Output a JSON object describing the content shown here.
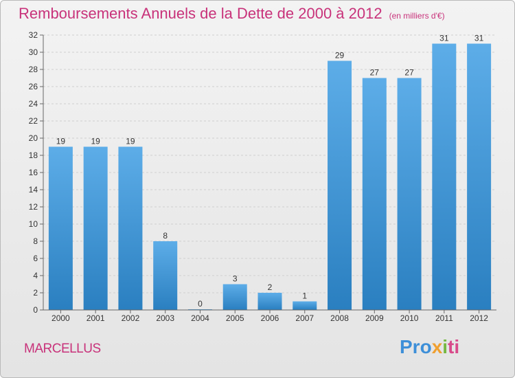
{
  "header": {
    "title": "Remboursements Annuels de la Dette de 2000 à 2012",
    "unit": "(en milliers d'€)"
  },
  "footer": {
    "commune": "MARCELLUS",
    "logo_text": "Proxiti",
    "logo_parts": [
      "Pro",
      "x",
      "i",
      "ti"
    ]
  },
  "colors": {
    "bar_top": "#5dade8",
    "bar_bottom": "#2a7fc0",
    "title": "#c8327a",
    "grid": "#cfcfcf"
  },
  "chart_data": {
    "type": "bar",
    "title": "Remboursements Annuels de la Dette de 2000 à 2012",
    "xlabel": "",
    "ylabel": "",
    "ylim": [
      0,
      32
    ],
    "yticks": [
      0,
      2,
      4,
      6,
      8,
      10,
      12,
      14,
      16,
      18,
      20,
      22,
      24,
      26,
      28,
      30,
      32
    ],
    "grid": true,
    "categories": [
      "2000",
      "2001",
      "2002",
      "2003",
      "2004",
      "2005",
      "2006",
      "2007",
      "2008",
      "2009",
      "2010",
      "2011",
      "2012"
    ],
    "values": [
      19,
      19,
      19,
      8,
      0,
      3,
      2,
      1,
      29,
      27,
      27,
      31,
      31
    ]
  }
}
